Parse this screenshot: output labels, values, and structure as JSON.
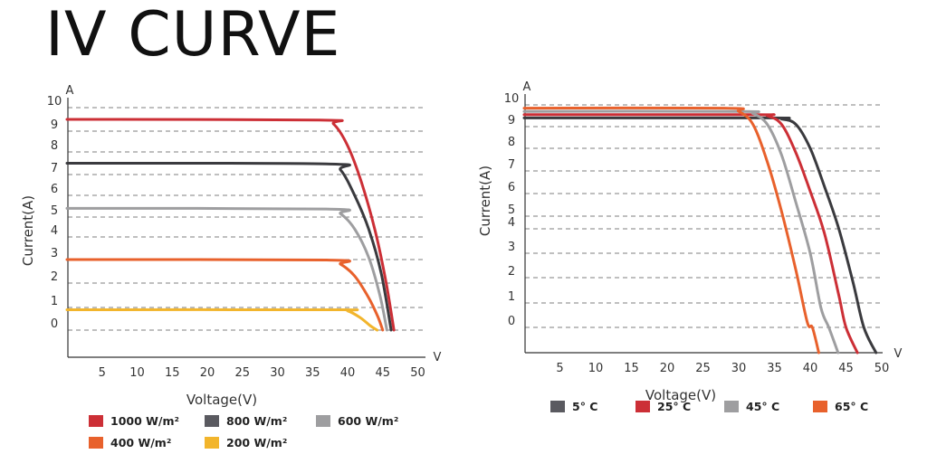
{
  "title": "IV CURVE",
  "chart_data": [
    {
      "type": "line",
      "xlabel": "Voltage(V)",
      "ylabel": "Current(A)",
      "x_unit": "V",
      "y_unit": "A",
      "xticks": [
        5,
        10,
        15,
        20,
        25,
        30,
        35,
        40,
        45,
        50
      ],
      "yticks": [
        0,
        1,
        2,
        3,
        4,
        5,
        6,
        7,
        8,
        9,
        10
      ],
      "xlim": [
        0,
        51
      ],
      "grid": "horizontal dashed",
      "legend_position": "bottom",
      "series": [
        {
          "name": "1000 W/m²",
          "color": "#cc2f36",
          "isc": 9.5,
          "voc": 46.6,
          "points": [
            [
              0,
              9.5
            ],
            [
              36,
              9.47
            ],
            [
              38,
              9.3
            ],
            [
              40,
              8.3
            ],
            [
              42,
              6.6
            ],
            [
              44,
              4.2
            ],
            [
              45.5,
              2.0
            ],
            [
              46.6,
              0
            ]
          ]
        },
        {
          "name": "800 W/m²",
          "color": "#3a3a3e",
          "isc": 7.5,
          "voc": 46.2,
          "points": [
            [
              0,
              7.5
            ],
            [
              37,
              7.47
            ],
            [
              39,
              7.2
            ],
            [
              41,
              6.0
            ],
            [
              43,
              4.4
            ],
            [
              44.8,
              2.4
            ],
            [
              46.2,
              0
            ]
          ]
        },
        {
          "name": "600 W/m²",
          "color": "#9e9ea0",
          "isc": 5.4,
          "voc": 45.6,
          "points": [
            [
              0,
              5.4
            ],
            [
              37,
              5.37
            ],
            [
              39,
              5.15
            ],
            [
              41,
              4.4
            ],
            [
              43,
              3.1
            ],
            [
              44.6,
              1.5
            ],
            [
              45.6,
              0
            ]
          ]
        },
        {
          "name": "400 W/m²",
          "color": "#e8612c",
          "isc": 3.0,
          "voc": 45.0,
          "points": [
            [
              0,
              3.0
            ],
            [
              37,
              2.98
            ],
            [
              39,
              2.8
            ],
            [
              41,
              2.3
            ],
            [
              43,
              1.4
            ],
            [
              44.3,
              0.6
            ],
            [
              45.0,
              0
            ]
          ]
        },
        {
          "name": "200 W/m²",
          "color": "#f2b52c",
          "isc": 0.9,
          "voc": 44.2,
          "points": [
            [
              0,
              0.9
            ],
            [
              38,
              0.9
            ],
            [
              40,
              0.85
            ],
            [
              41.8,
              0.55
            ],
            [
              43.2,
              0.2
            ],
            [
              44.2,
              0
            ]
          ]
        }
      ],
      "legend": [
        {
          "label": "1000 W/m²",
          "color": "#cc2f36"
        },
        {
          "label": "800 W/m²",
          "color": "#5a5a60"
        },
        {
          "label": "600 W/m²",
          "color": "#9e9ea0"
        },
        {
          "label": "400 W/m²",
          "color": "#e8612c"
        },
        {
          "label": "200 W/m²",
          "color": "#f2b52c"
        }
      ]
    },
    {
      "type": "line",
      "xlabel": "Voltage(V)",
      "ylabel": "Current(A)",
      "x_unit": "V",
      "y_unit": "A",
      "xticks": [
        5,
        10,
        15,
        20,
        25,
        30,
        35,
        40,
        45,
        50
      ],
      "yticks": [
        0,
        1,
        2,
        3,
        4,
        5,
        6,
        7,
        8,
        9,
        10
      ],
      "xlim": [
        0,
        52
      ],
      "grid": "horizontal dashed",
      "legend_position": "bottom",
      "series": [
        {
          "name": "5° C",
          "color": "#3a3a3e",
          "isc": 9.4,
          "voc": 49.2,
          "points": [
            [
              0,
              9.4
            ],
            [
              34,
              9.4
            ],
            [
              36,
              9.35
            ],
            [
              38,
              9.1
            ],
            [
              40,
              8.0
            ],
            [
              42,
              6.3
            ],
            [
              44,
              4.0
            ],
            [
              46,
              1.8
            ],
            [
              47.5,
              0
            ],
            [
              49.2,
              -1.0
            ]
          ]
        },
        {
          "name": "25° C",
          "color": "#cc2f36",
          "isc": 9.55,
          "voc": 46.6,
          "points": [
            [
              0,
              9.55
            ],
            [
              32,
              9.55
            ],
            [
              34,
              9.5
            ],
            [
              36,
              9.1
            ],
            [
              38,
              7.8
            ],
            [
              40,
              6.1
            ],
            [
              42,
              3.8
            ],
            [
              44,
              1.3
            ],
            [
              45,
              0
            ],
            [
              46.6,
              -1.0
            ]
          ]
        },
        {
          "name": "45° C",
          "color": "#9e9ea0",
          "isc": 9.7,
          "voc": 43.9,
          "points": [
            [
              0,
              9.7
            ],
            [
              30,
              9.7
            ],
            [
              32,
              9.6
            ],
            [
              34,
              9.1
            ],
            [
              36,
              7.7
            ],
            [
              38,
              5.6
            ],
            [
              40,
              3.0
            ],
            [
              41.5,
              0.8
            ],
            [
              42.6,
              0
            ],
            [
              43.9,
              -1.0
            ]
          ]
        },
        {
          "name": "65° C",
          "color": "#e8612c",
          "isc": 9.85,
          "voc": 41.2,
          "points": [
            [
              0,
              9.85
            ],
            [
              28,
              9.85
            ],
            [
              30,
              9.7
            ],
            [
              32,
              9.1
            ],
            [
              34,
              7.4
            ],
            [
              36,
              5.2
            ],
            [
              38,
              2.3
            ],
            [
              39.6,
              0.2
            ],
            [
              40.3,
              0
            ],
            [
              41.2,
              -1.0
            ]
          ]
        }
      ],
      "legend": [
        {
          "label": "5° C",
          "color": "#5a5a60"
        },
        {
          "label": "25° C",
          "color": "#cc2f36"
        },
        {
          "label": "45° C",
          "color": "#9e9ea0"
        },
        {
          "label": "65° C",
          "color": "#e8612c"
        }
      ]
    }
  ]
}
